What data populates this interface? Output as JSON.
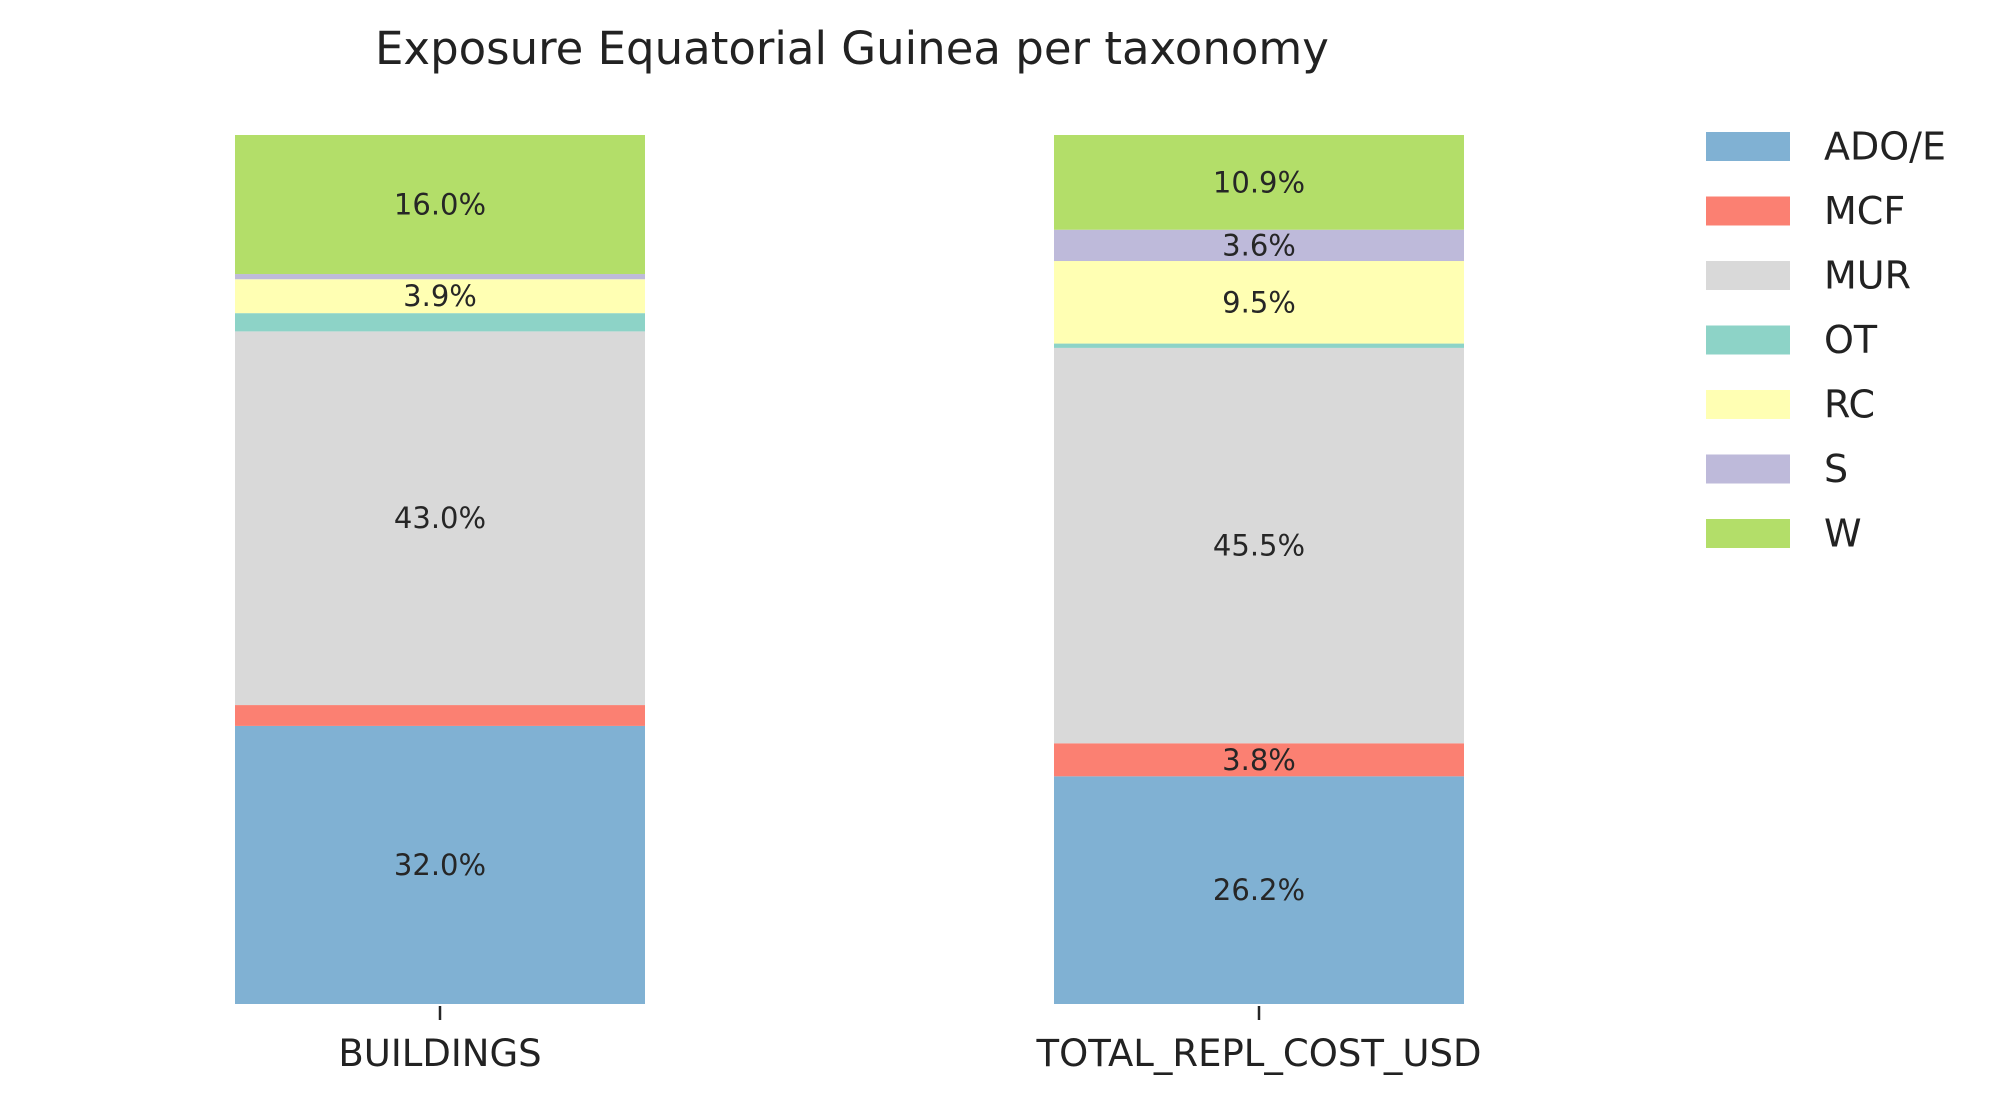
{
  "chart_data": {
    "type": "bar",
    "stacked": true,
    "normalized": true,
    "title": "Exposure Equatorial Guinea per taxonomy",
    "xlabel": "",
    "ylabel": "",
    "ylim": [
      0,
      100
    ],
    "grid": false,
    "legend_position": "top-right",
    "categories": [
      "BUILDINGS",
      "TOTAL_REPL_COST_USD"
    ],
    "series": [
      {
        "name": "ADO/E",
        "color": "#80b1d3",
        "values": [
          32.0,
          26.2
        ],
        "labels": [
          "32.0%",
          "26.2%"
        ]
      },
      {
        "name": "MCF",
        "color": "#fb8072",
        "values": [
          2.4,
          3.8
        ],
        "labels": [
          "",
          "3.8%"
        ]
      },
      {
        "name": "MUR",
        "color": "#d9d9d9",
        "values": [
          43.0,
          45.5
        ],
        "labels": [
          "43.0%",
          "45.5%"
        ]
      },
      {
        "name": "OT",
        "color": "#8dd3c7",
        "values": [
          2.1,
          0.5
        ],
        "labels": [
          "",
          ""
        ]
      },
      {
        "name": "RC",
        "color": "#ffffb3",
        "values": [
          3.9,
          9.5
        ],
        "labels": [
          "3.9%",
          "9.5%"
        ]
      },
      {
        "name": "S",
        "color": "#bebada",
        "values": [
          0.6,
          3.6
        ],
        "labels": [
          "",
          "3.6%"
        ]
      },
      {
        "name": "W",
        "color": "#b3de69",
        "values": [
          16.0,
          10.9
        ],
        "labels": [
          "16.0%",
          "10.9%"
        ]
      }
    ]
  }
}
